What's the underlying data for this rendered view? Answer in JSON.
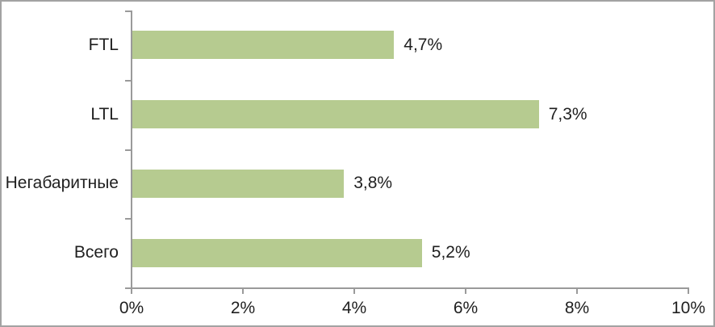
{
  "chart_data": {
    "type": "bar",
    "orientation": "horizontal",
    "title": "",
    "xlabel": "",
    "ylabel": "",
    "categories": [
      "FTL",
      "LTL",
      "Негабаритные",
      "Всего"
    ],
    "values": [
      4.7,
      7.3,
      3.8,
      5.2
    ],
    "value_labels": [
      "4,7%",
      "7,3%",
      "3,8%",
      "5,2%"
    ],
    "xlim": [
      0,
      10
    ],
    "x_tick_values": [
      0,
      2,
      4,
      6,
      8,
      10
    ],
    "x_tick_labels": [
      "0%",
      "2%",
      "4%",
      "6%",
      "8%",
      "10%"
    ],
    "grid": false,
    "legend": false,
    "decimal_separator": ",",
    "colors": {
      "bar_fill": "#b6cb90",
      "axis": "#9a9a9a",
      "text": "#1f1f1f",
      "frame_border": "#a3a3a3",
      "background": "#ffffff"
    }
  }
}
